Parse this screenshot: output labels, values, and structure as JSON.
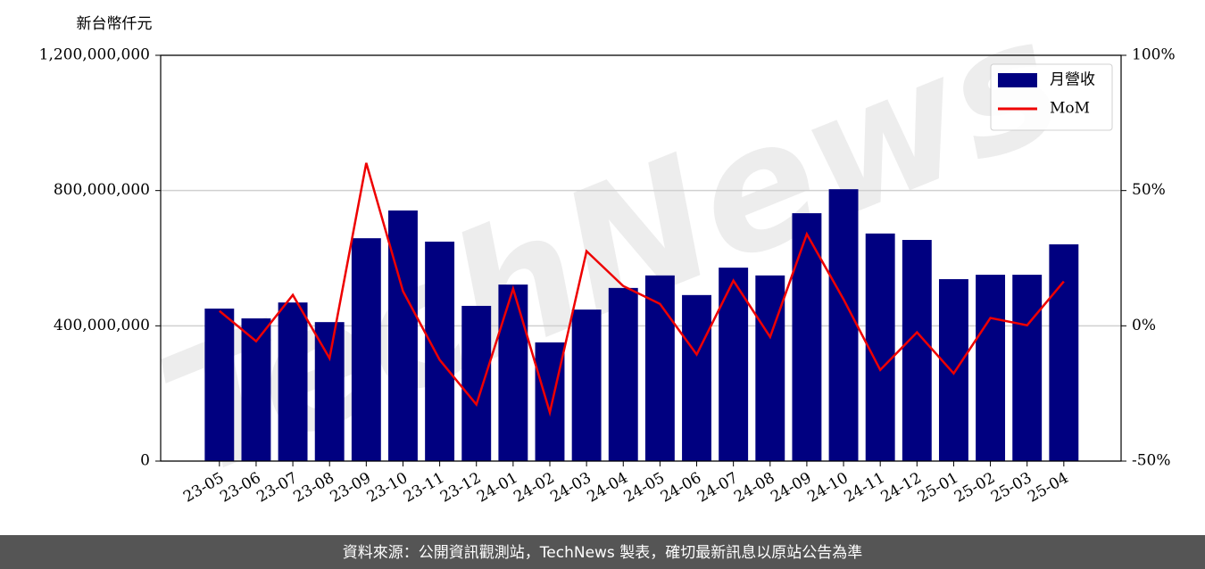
{
  "chart_data": {
    "type": "bar_line",
    "y_label": "新台幣仟元",
    "watermark": "TechNews",
    "source": "資料來源：公開資訊觀測站，TechNews 製表，確切最新訊息以原站公告為準",
    "categories": [
      "23-05",
      "23-06",
      "23-07",
      "23-08",
      "23-09",
      "23-10",
      "23-11",
      "23-12",
      "24-01",
      "24-02",
      "24-03",
      "24-04",
      "24-05",
      "24-06",
      "24-07",
      "24-08",
      "24-09",
      "24-10",
      "24-11",
      "24-12",
      "25-01",
      "25-02",
      "25-03",
      "25-04"
    ],
    "series": [
      {
        "name": "月營收",
        "type": "bar",
        "color": "#000080",
        "values": [
          451000000,
          422000000,
          469000000,
          411000000,
          659000000,
          741000000,
          649000000,
          459000000,
          522000000,
          351000000,
          448000000,
          512000000,
          549000000,
          491000000,
          572000000,
          549000000,
          733000000,
          804000000,
          673000000,
          654000000,
          538000000,
          551000000,
          551000000,
          641000000
        ]
      },
      {
        "name": "MoM",
        "type": "line",
        "axis": "y2",
        "color": "#ee0000",
        "values": [
          5.5,
          -5.7,
          11.4,
          -12,
          60.2,
          12.8,
          -12.6,
          -29.1,
          13.7,
          -32,
          27.6,
          14.7,
          8.1,
          -10.6,
          16.7,
          -4.1,
          33.9,
          9.8,
          -16.3,
          -2.4,
          -17.6,
          2.9,
          0.2,
          16.4
        ]
      }
    ],
    "ylim": [
      0,
      1200000000
    ],
    "yticks": [
      0,
      {
        "value": 400000000,
        "label": "400,000,000"
      },
      {
        "value": 800000000,
        "label": "800,000,000"
      },
      {
        "value": 1200000000,
        "label": "1,200,000,000"
      }
    ],
    "y2lim": [
      -50,
      100
    ],
    "y2ticks": [
      {
        "value": -50,
        "label": "-50%"
      },
      {
        "value": 0,
        "label": "0%"
      },
      {
        "value": 50,
        "label": "50%"
      },
      {
        "value": 100,
        "label": "100%"
      }
    ],
    "grid": true,
    "legend": "upper right"
  }
}
